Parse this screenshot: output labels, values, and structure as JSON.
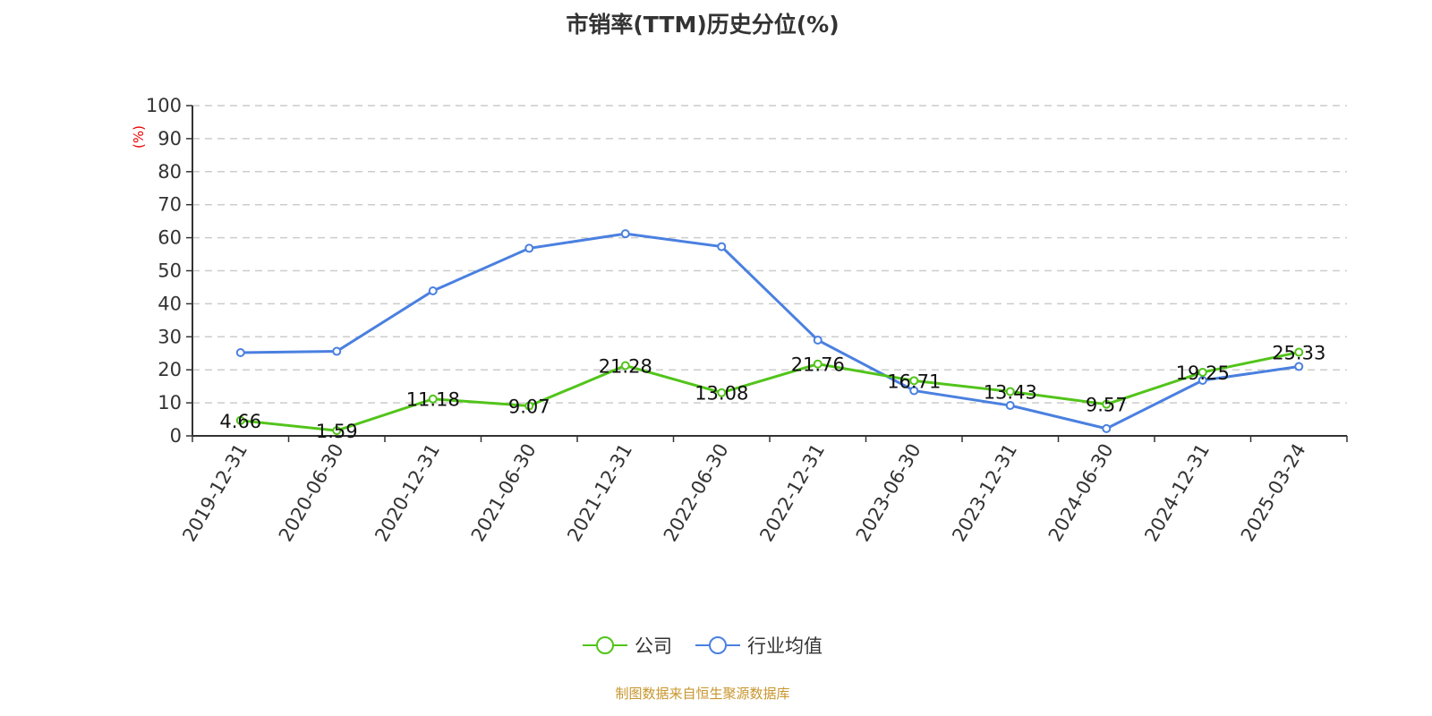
{
  "chart_data": {
    "type": "line",
    "title": "市销率(TTM)历史分位(%)",
    "ylabel": "(%)",
    "ylim": [
      0,
      100
    ],
    "yticks": [
      0,
      10,
      20,
      30,
      40,
      50,
      60,
      70,
      80,
      90,
      100
    ],
    "grid": true,
    "legend_position": "bottom",
    "categories": [
      "2019-12-31",
      "2020-06-30",
      "2020-12-31",
      "2021-06-30",
      "2021-12-31",
      "2022-06-30",
      "2022-12-31",
      "2023-06-30",
      "2023-12-31",
      "2024-06-30",
      "2024-12-31",
      "2025-03-24"
    ],
    "series": [
      {
        "name": "公司",
        "color": "#52c41a",
        "labels": true,
        "values": [
          4.66,
          1.59,
          11.18,
          9.07,
          21.28,
          13.08,
          21.76,
          16.71,
          13.43,
          9.57,
          19.25,
          25.33
        ]
      },
      {
        "name": "行业均值",
        "color": "#4a80e0",
        "labels": false,
        "values": [
          25.2,
          25.6,
          43.9,
          56.8,
          61.2,
          57.3,
          29.0,
          13.7,
          9.2,
          2.2,
          16.8,
          21.0
        ]
      }
    ]
  },
  "source": "制图数据来自恒生聚源数据库"
}
